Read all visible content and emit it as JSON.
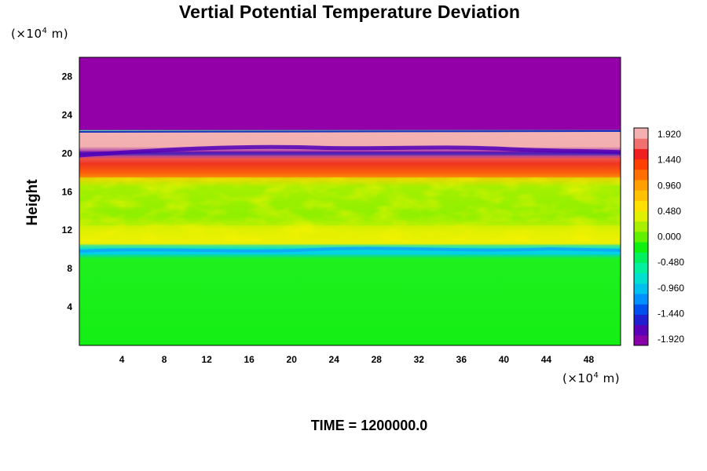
{
  "chart_data": {
    "type": "heatmap",
    "title": "Vertial Potential Temperature Deviation",
    "ylabel": "Height",
    "y_unit": {
      "prefix": "(×10",
      "exp": "4",
      "suffix": " m)"
    },
    "x_unit": {
      "prefix": "(×10",
      "exp": "4",
      "suffix": " m)"
    },
    "footer": "TIME = 1200000.0",
    "xlim": [
      0,
      51
    ],
    "ylim": [
      0,
      30
    ],
    "x_ticks": [
      "4",
      "8",
      "12",
      "16",
      "20",
      "24",
      "28",
      "32",
      "36",
      "40",
      "44",
      "48"
    ],
    "y_ticks": [
      "4",
      "8",
      "12",
      "16",
      "20",
      "24",
      "28"
    ],
    "colorbar": {
      "range": [
        -1.92,
        1.92
      ],
      "tick_labels": [
        "1.920",
        "1.440",
        "0.960",
        "0.480",
        "0.000",
        "-0.480",
        "-0.960",
        "-1.440",
        "-1.920"
      ],
      "colors": [
        "#8a00a8",
        "#5a00b8",
        "#2020d0",
        "#0050ee",
        "#0090ff",
        "#00c0f0",
        "#00e0d0",
        "#00f0a0",
        "#00f060",
        "#10f010",
        "#60f000",
        "#a8f000",
        "#e0f000",
        "#ffe000",
        "#ffc000",
        "#ffa000",
        "#ff7000",
        "#ff4000",
        "#f02020",
        "#f07070",
        "#f4b0b0"
      ]
    },
    "bands": [
      {
        "y0": 0,
        "y1": 9.5,
        "value": 0.05,
        "color": "#1af01a"
      },
      {
        "y0": 9.5,
        "y1": 10.5,
        "value": -0.6,
        "color": "#00d8e0"
      },
      {
        "y0": 10.5,
        "y1": 12.5,
        "value": 0.5,
        "color": "#e8f000"
      },
      {
        "y0": 12.5,
        "y1": 17.5,
        "value": 0.3,
        "color": "#a8f000"
      },
      {
        "y0": 17.5,
        "y1": 19.5,
        "value": 1.5,
        "color": "#f04020"
      },
      {
        "y0": 19.5,
        "y1": 20.2,
        "value": -1.8,
        "color": "#8a10a8"
      },
      {
        "y0": 20.2,
        "y1": 22.4,
        "value": 1.92,
        "color": "#f4b0b0"
      },
      {
        "y0": 22.4,
        "y1": 30,
        "value": -1.92,
        "color": "#9400a8"
      }
    ]
  }
}
